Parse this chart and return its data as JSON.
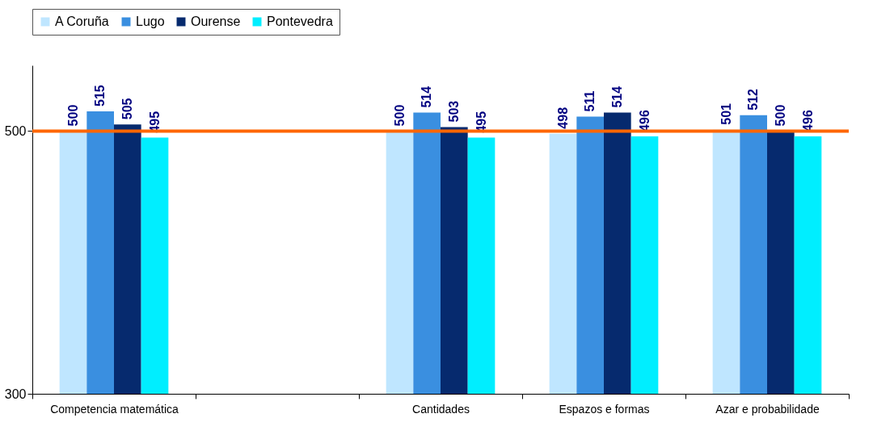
{
  "chart_data": {
    "type": "bar",
    "categories": [
      "Competencia matemática",
      null,
      "Cantidades",
      "Espazos e formas",
      "Azar e probabilidade"
    ],
    "series": [
      {
        "name": "A Coruña",
        "color": "#bfe6ff",
        "values": [
          500,
          null,
          500,
          498,
          501
        ]
      },
      {
        "name": "Lugo",
        "color": "#3a8fe0",
        "values": [
          515,
          null,
          514,
          511,
          512
        ]
      },
      {
        "name": "Ourense",
        "color": "#062a6e",
        "values": [
          505,
          null,
          503,
          514,
          500
        ]
      },
      {
        "name": "Pontevedra",
        "color": "#00eeff",
        "values": [
          495,
          null,
          495,
          496,
          496
        ]
      }
    ],
    "ylim": [
      300,
      550
    ],
    "yticks": [
      300,
      500
    ],
    "grid": false,
    "legend": "top",
    "data_labels": true,
    "ref_lines": [
      {
        "axis": "y",
        "value": 500,
        "color": "#ff6600"
      }
    ]
  }
}
